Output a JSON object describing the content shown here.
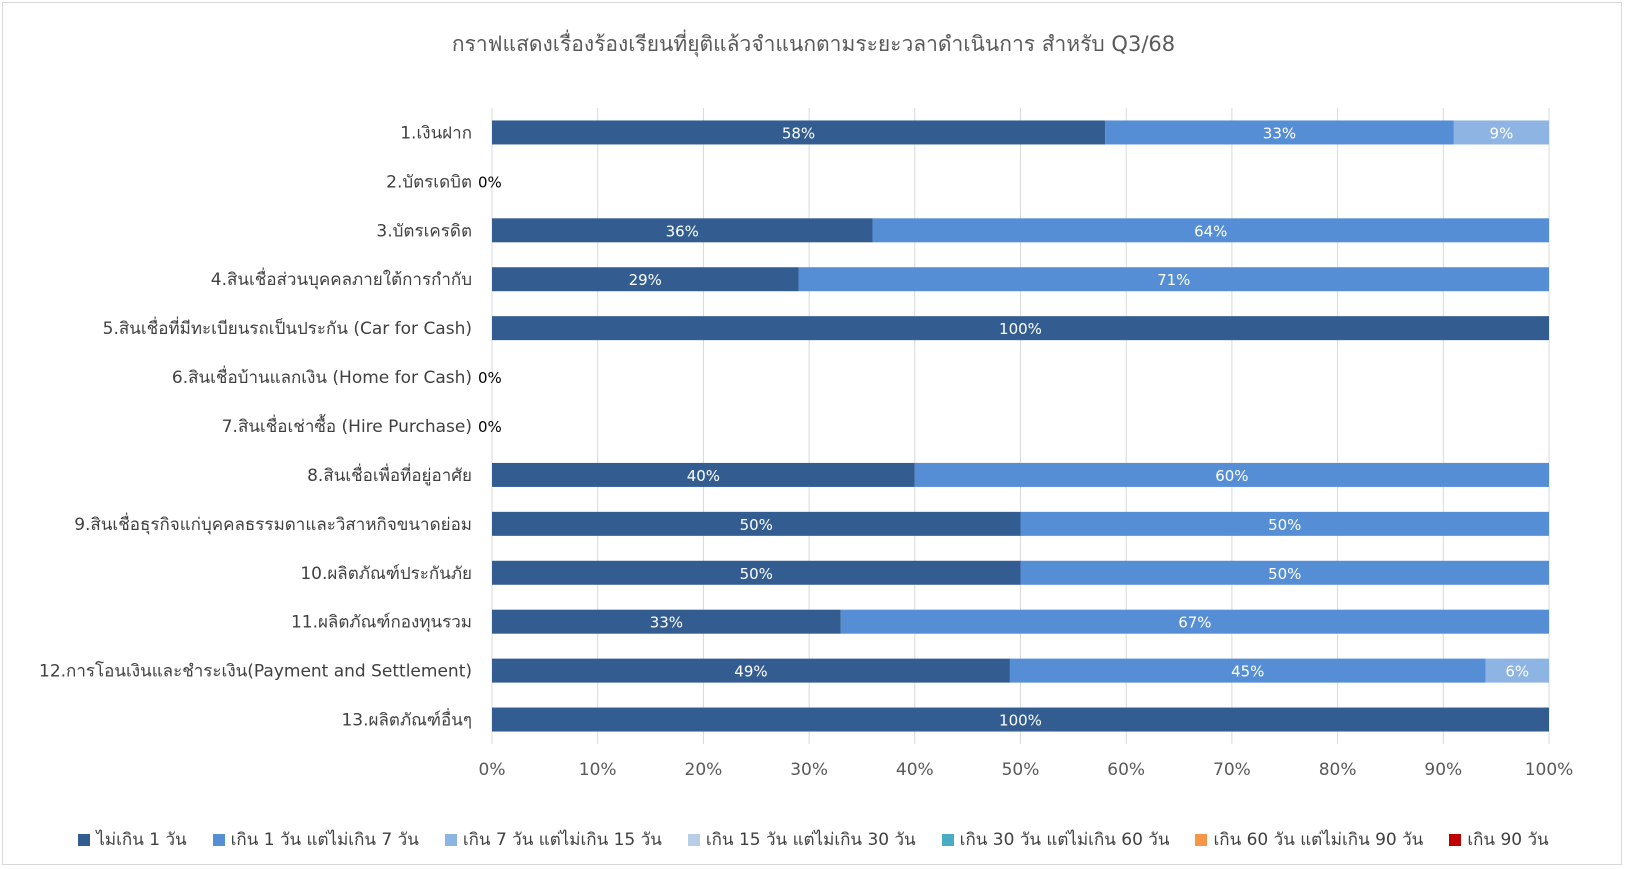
{
  "chart_data": {
    "type": "bar",
    "orientation": "horizontal",
    "stacked": true,
    "percent_stacked": true,
    "title": "กราฟแสดงเรื่องร้องเรียนที่ยุติแล้วจำแนกตามระยะวลาดำเนินการ  สำหรับ Q3/68",
    "categories": [
      "1.เงินฝาก",
      "2.บัตรเดบิต",
      "3.บัตรเครดิต",
      "4.สินเชื่อส่วนบุคคลภายใต้การกำกับ",
      "5.สินเชื่อที่มีทะเบียนรถเป็นประกัน (Car for Cash)",
      "6.สินเชื่อบ้านแลกเงิน (Home for Cash)",
      "7.สินเชื่อเช่าซื้อ (Hire Purchase)",
      "8.สินเชื่อเพื่อที่อยู่อาศัย",
      "9.สินเชื่อธุรกิจแก่บุคคลธรรมดาและวิสาหกิจขนาดย่อม",
      "10.ผลิตภัณฑ์ประกันภัย",
      "11.ผลิตภัณฑ์กองทุนรวม",
      "12.การโอนเงินและชำระเงิน(Payment and Settlement)",
      "13.ผลิตภัณฑ์อื่นๆ"
    ],
    "series": [
      {
        "name": "ไม่เกิน 1 วัน",
        "color": "#335d91",
        "values": [
          58,
          0,
          36,
          29,
          100,
          0,
          0,
          40,
          50,
          50,
          33,
          49,
          100
        ]
      },
      {
        "name": "เกิน 1 วัน แต่ไม่เกิน 7 วัน",
        "color": "#558ed5",
        "values": [
          33,
          0,
          64,
          71,
          0,
          0,
          0,
          60,
          50,
          50,
          67,
          45,
          0
        ]
      },
      {
        "name": "เกิน 7 วัน แต่ไม่เกิน 15 วัน",
        "color": "#8eb4e3",
        "values": [
          9,
          0,
          0,
          0,
          0,
          0,
          0,
          0,
          0,
          0,
          0,
          6,
          0
        ]
      },
      {
        "name": "เกิน 15 วัน แต่ไม่เกิน 30 วัน",
        "color": "#b9cde5",
        "values": [
          0,
          0,
          0,
          0,
          0,
          0,
          0,
          0,
          0,
          0,
          0,
          0,
          0
        ]
      },
      {
        "name": "เกิน 30 วัน แต่ไม่เกิน 60 วัน",
        "color": "#4bacc6",
        "values": [
          0,
          0,
          0,
          0,
          0,
          0,
          0,
          0,
          0,
          0,
          0,
          0,
          0
        ]
      },
      {
        "name": "เกิน 60 วัน แต่ไม่เกิน 90 วัน",
        "color": "#f79646",
        "values": [
          0,
          0,
          0,
          0,
          0,
          0,
          0,
          0,
          0,
          0,
          0,
          0,
          0
        ]
      },
      {
        "name": "เกิน 90 วัน",
        "color": "#c00000",
        "values": [
          0,
          0,
          0,
          0,
          0,
          0,
          0,
          0,
          0,
          0,
          0,
          0,
          0
        ]
      }
    ],
    "zero_total_label": "0%",
    "x_ticks": [
      "0%",
      "10%",
      "20%",
      "30%",
      "40%",
      "50%",
      "60%",
      "70%",
      "80%",
      "90%",
      "100%"
    ],
    "xlim": [
      0,
      100
    ],
    "grid": true,
    "legend_position": "bottom"
  }
}
